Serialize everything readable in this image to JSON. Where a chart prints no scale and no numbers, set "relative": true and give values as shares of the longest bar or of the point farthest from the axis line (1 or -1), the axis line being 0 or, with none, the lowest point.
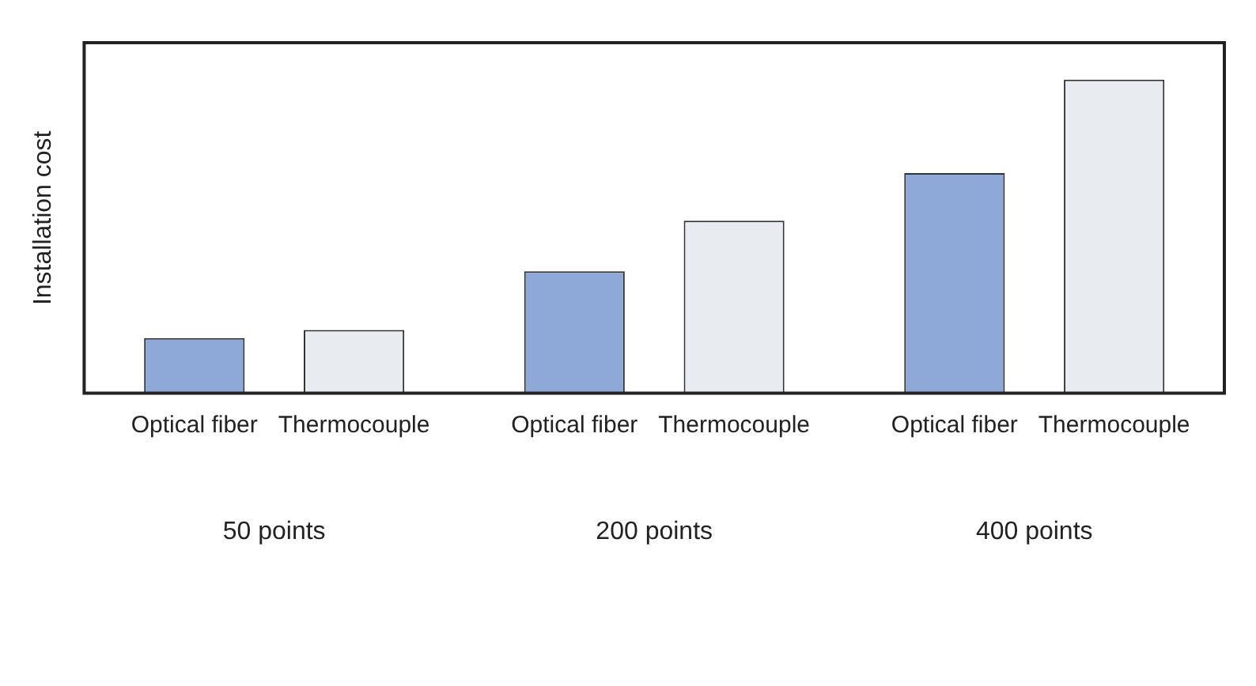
{
  "chart_data": {
    "type": "bar",
    "ylabel": "Installation cost",
    "categories": [
      "50 points",
      "200 points",
      "400 points"
    ],
    "relative": true,
    "grid": false,
    "legend": false,
    "series": [
      {
        "name": "Optical fiber",
        "color": "#8ea8d8",
        "values": [
          0.176,
          0.389,
          0.702
        ]
      },
      {
        "name": "Thermocouple",
        "color": "#e8ecf0",
        "values": [
          0.202,
          0.55,
          1
        ]
      }
    ]
  }
}
